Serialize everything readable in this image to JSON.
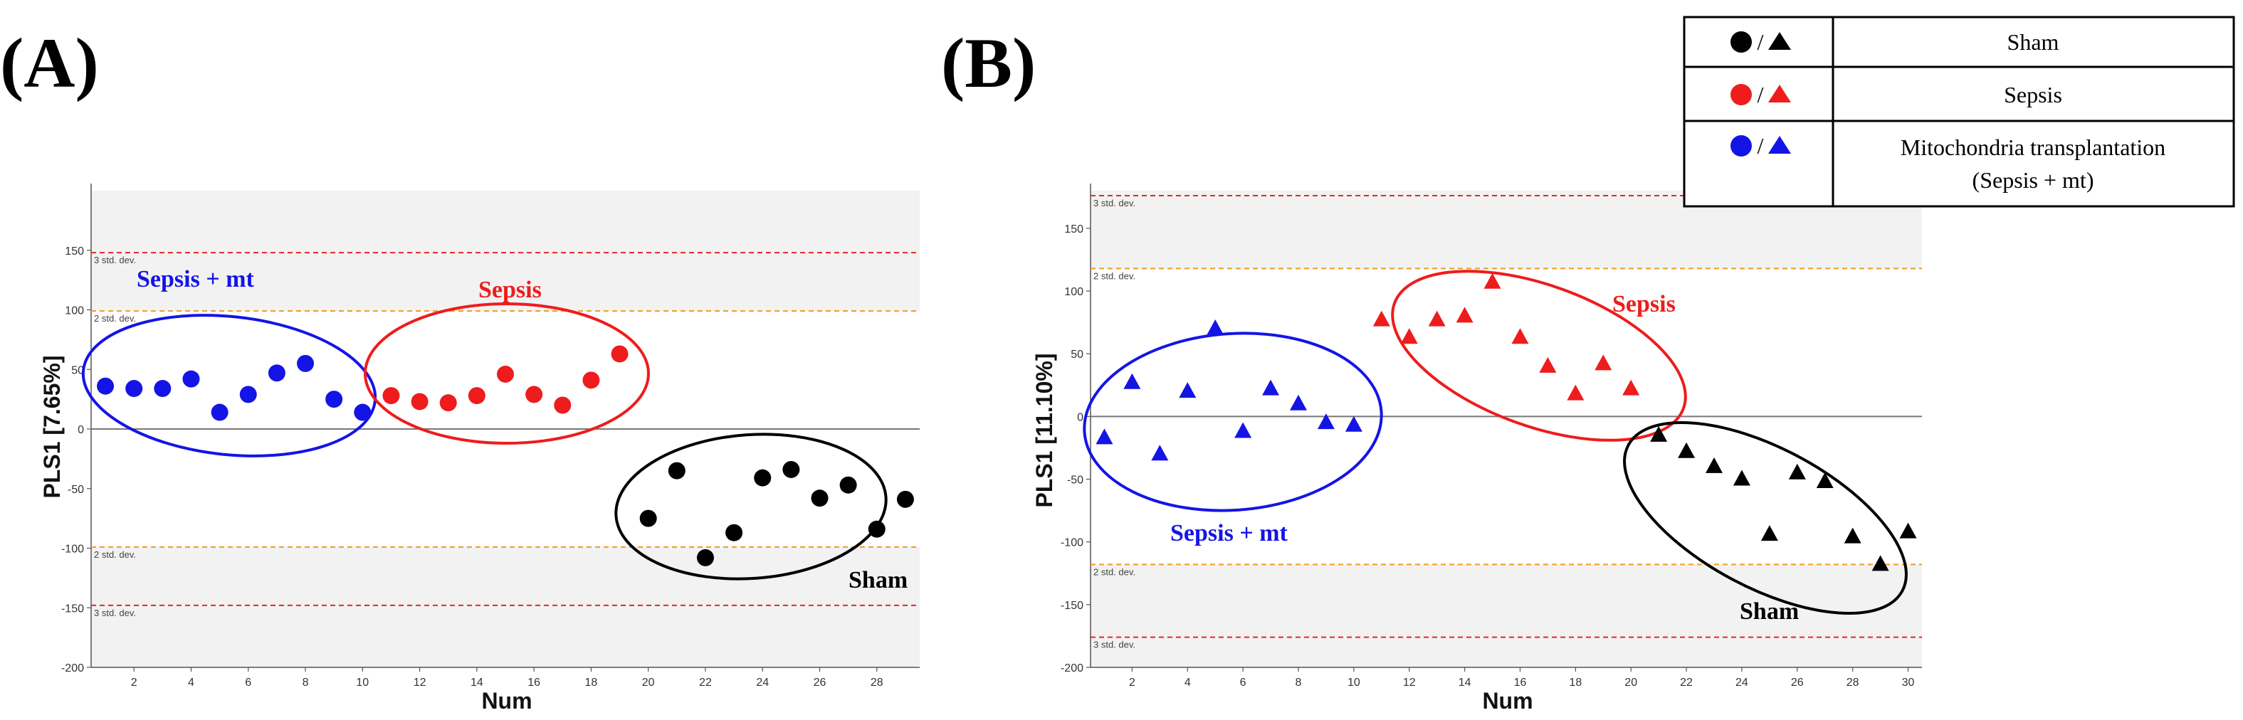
{
  "chart_data": [
    {
      "panel": "(A)",
      "type": "scatter",
      "marker": "circle",
      "xlabel": "Num",
      "ylabel": "PLS1 [7.65%]",
      "xlim": [
        0.5,
        29.5
      ],
      "ylim": [
        -200,
        200
      ],
      "x_ticks": [
        2,
        4,
        6,
        8,
        10,
        12,
        14,
        16,
        18,
        20,
        22,
        24,
        26,
        28
      ],
      "y_ticks": [
        -200,
        -150,
        -100,
        -50,
        0,
        50,
        100,
        150
      ],
      "std_lines": [
        {
          "label": "3 std. dev.",
          "value": 148,
          "color": "#e8262a"
        },
        {
          "label": "2 std. dev.",
          "value": 99,
          "color": "#f39a1e"
        },
        {
          "label": "2 std. dev.",
          "value": -99,
          "color": "#f39a1e"
        },
        {
          "label": "3 std. dev.",
          "value": -148,
          "color": "#e8262a"
        }
      ],
      "series": [
        {
          "name": "Sepsis + mt",
          "color": "#1414e6",
          "x": [
            1,
            2,
            3,
            4,
            5,
            6,
            7,
            8,
            9,
            10
          ],
          "y": [
            36,
            34,
            34,
            42,
            14,
            29,
            47,
            55,
            25,
            14
          ]
        },
        {
          "name": "Sepsis",
          "color": "#ee1c1c",
          "x": [
            11,
            12,
            13,
            14,
            15,
            16,
            17,
            18,
            19
          ],
          "y": [
            28,
            23,
            22,
            28,
            46,
            29,
            20,
            41,
            63
          ]
        },
        {
          "name": "Sham",
          "color": "#000000",
          "x": [
            20,
            21,
            22,
            23,
            24,
            25,
            26,
            27,
            28,
            29
          ],
          "y": [
            -75,
            -35,
            -108,
            -87,
            -41,
            -34,
            -58,
            -47,
            -84,
            -59
          ]
        }
      ],
      "group_labels": [
        "Sepsis + mt",
        "Sepsis",
        "Sham"
      ]
    },
    {
      "panel": "(B)",
      "type": "scatter",
      "marker": "triangle",
      "xlabel": "Num",
      "ylabel": "PLS1 [11.10%]",
      "xlim": [
        0.5,
        30.5
      ],
      "ylim": [
        -200,
        180
      ],
      "x_ticks": [
        2,
        4,
        6,
        8,
        10,
        12,
        14,
        16,
        18,
        20,
        22,
        24,
        26,
        28,
        30
      ],
      "y_ticks": [
        -200,
        -150,
        -100,
        -50,
        0,
        50,
        100,
        150
      ],
      "std_lines": [
        {
          "label": "3 std. dev.",
          "value": 176,
          "color": "#e8262a"
        },
        {
          "label": "2 std. dev.",
          "value": 118,
          "color": "#f39a1e"
        },
        {
          "label": "2 std. dev.",
          "value": -118,
          "color": "#f39a1e"
        },
        {
          "label": "3 std. dev.",
          "value": -176,
          "color": "#e8262a"
        }
      ],
      "series": [
        {
          "name": "Sepsis + mt",
          "color": "#1414e6",
          "x": [
            1,
            2,
            3,
            4,
            5,
            6,
            7,
            8,
            9,
            10
          ],
          "y": [
            -17,
            27,
            -30,
            20,
            70,
            -12,
            22,
            10,
            -5,
            -7
          ]
        },
        {
          "name": "Sepsis",
          "color": "#ee1c1c",
          "x": [
            11,
            12,
            13,
            14,
            15,
            16,
            17,
            18,
            19,
            20
          ],
          "y": [
            77,
            63,
            77,
            80,
            107,
            63,
            40,
            18,
            42,
            22
          ]
        },
        {
          "name": "Sham",
          "color": "#000000",
          "x": [
            21,
            22,
            23,
            24,
            25,
            26,
            27,
            28,
            29,
            30
          ],
          "y": [
            -15,
            -28,
            -40,
            -50,
            -94,
            -45,
            -52,
            -96,
            -118,
            -92
          ]
        }
      ],
      "group_labels": [
        "Sepsis",
        "Sepsis + mt",
        "Sham"
      ]
    }
  ],
  "legend": {
    "rows": [
      {
        "label": "Sham",
        "color": "#000000"
      },
      {
        "label": "Sepsis",
        "color": "#ee1c1c"
      },
      {
        "label_line1": "Mitochondria transplantation",
        "label_line2": "(Sepsis + mt)",
        "color": "#1414e6"
      }
    ],
    "separator": "/"
  },
  "colors": {
    "axis": "#555555",
    "band": "#f2f2f2",
    "zero_line": "#777777"
  }
}
